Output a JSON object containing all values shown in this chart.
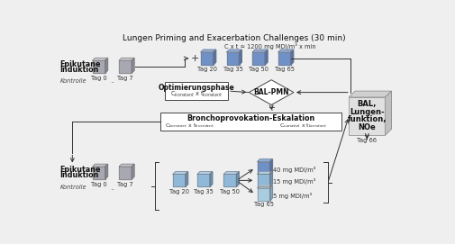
{
  "title": "Lungen Priming and Exacerbation Challenges (30 min)",
  "title_fontsize": 6.5,
  "bg_color": "#efefef",
  "top_label1": "Epikutane",
  "top_label2": "Induktion",
  "top_kontrolle": "Kontrolle",
  "bottom_label1": "Epikutane",
  "bottom_label2": "Induktion",
  "bottom_kontrolle": "Kontrolle",
  "cxt_text": "C x t ≈ 1200 mg MDI/m³ x min",
  "opt_box_line1": "Optimierungsphase",
  "opt_box_sub": "C$_{konstant}$ x t$_{konstant}$",
  "broncho_line1": "Bronchoprovokation-Eskalation",
  "broncho_sub_left": "C$_{konstant}$ x t$_{konstant}$",
  "broncho_sub_right": "C$_{variabel}$ x t$_{konstant}$",
  "bal_pmn_text": "BAL-PMN",
  "bal_lines": [
    "BAL,",
    "Lungen-",
    "funktion,",
    "NOe"
  ],
  "tag_66": "Tag 66",
  "top_gray_tags": [
    "Tag 0",
    "Tag 7"
  ],
  "top_blue_tags": [
    "Tag 20",
    "Tag 35",
    "Tag 50",
    "Tag 65"
  ],
  "bottom_gray_tags": [
    "Tag 0",
    "Tag 7"
  ],
  "bottom_blue_tags": [
    "Tag 20",
    "Tag 35",
    "Tag 50"
  ],
  "tag65_label": "Tag 65",
  "dose_labels": [
    "40 mg MDI/m³",
    "15 mg MDI/m³",
    "5 mg MDI/m³"
  ],
  "gray_face": "#a8a8b2",
  "gray_top": "#c5c5cc",
  "gray_side": "#8a8a92",
  "blue_dark_face": "#7090c8",
  "blue_dark_top": "#90aedd",
  "blue_dark_side": "#5070a8",
  "blue_med_face": "#90b8d8",
  "blue_med_top": "#aecde8",
  "blue_med_side": "#6890b5",
  "blue_light_face": "#aacce0",
  "blue_light_top": "#c2ddef",
  "blue_light_side": "#88aac8",
  "bal_face": "#e0e0e0",
  "bal_top": "#d0d0d0",
  "bal_side": "#c0c0c0",
  "bal_back": "#cccccc"
}
